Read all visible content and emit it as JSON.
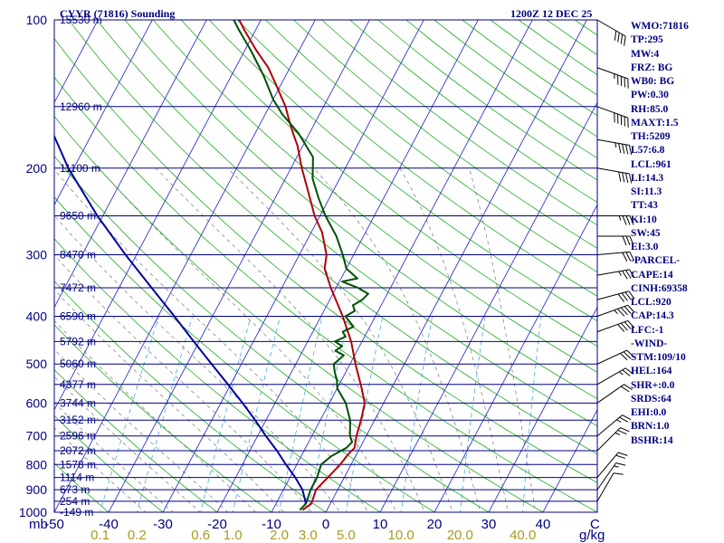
{
  "header": {
    "station": "CYYR (71816) Sounding",
    "time": "1200Z 12 DEC 25"
  },
  "chart_data": {
    "type": "line",
    "title": "CYYR (71816) Sounding",
    "pressure_axis": {
      "label": "mb",
      "ticks": [
        100,
        200,
        300,
        400,
        500,
        600,
        700,
        800,
        900,
        1000
      ],
      "range": [
        1000,
        100
      ],
      "scale": "log"
    },
    "temperature_axis": {
      "ticks": [
        -50,
        -40,
        -30,
        -20,
        -10,
        0,
        10,
        20,
        30,
        40
      ],
      "tick_labels": [
        "-50",
        "-40",
        "-30",
        "-20",
        "-10",
        "0",
        "10",
        "20",
        "30",
        "40"
      ],
      "unit": "C",
      "range": [
        -50,
        50
      ]
    },
    "mixing_ratio_axis": {
      "ticks": [
        0.1,
        0.2,
        0.6,
        1.0,
        2.0,
        3.0,
        5.0,
        10.0,
        20.0,
        40.0
      ],
      "tick_labels": [
        "0.1",
        "0.2",
        "0.6",
        "1.0",
        "2.0",
        "3.0",
        "5.0",
        "10.0",
        "20.0",
        "40.0"
      ],
      "unit": "g/kg"
    },
    "height_labels": [
      {
        "p": 100,
        "label": "15530 m"
      },
      {
        "p": 150,
        "label": "12960 m"
      },
      {
        "p": 200,
        "label": "11100 m"
      },
      {
        "p": 250,
        "label": "9650 m"
      },
      {
        "p": 300,
        "label": "8470 m"
      },
      {
        "p": 350,
        "label": "7472 m"
      },
      {
        "p": 400,
        "label": "6590 m"
      },
      {
        "p": 450,
        "label": "5792 m"
      },
      {
        "p": 500,
        "label": "5060 m"
      },
      {
        "p": 550,
        "label": "4377 m"
      },
      {
        "p": 600,
        "label": "3744 m"
      },
      {
        "p": 650,
        "label": "3152 m"
      },
      {
        "p": 700,
        "label": "2596 m"
      },
      {
        "p": 750,
        "label": "2072 m"
      },
      {
        "p": 800,
        "label": "1578 m"
      },
      {
        "p": 850,
        "label": "1114 m"
      },
      {
        "p": 900,
        "label": "673 m"
      },
      {
        "p": 950,
        "label": "254 m"
      },
      {
        "p": 1000,
        "label": "-149 m"
      }
    ],
    "series": [
      {
        "name": "Temperature",
        "color": "#b00000",
        "points": [
          [
            990,
            -4.5
          ],
          [
            960,
            -3.5
          ],
          [
            900,
            -4
          ],
          [
            850,
            -3
          ],
          [
            800,
            -2
          ],
          [
            760,
            -1.5
          ],
          [
            740,
            -1
          ],
          [
            700,
            -1.8
          ],
          [
            650,
            -2.5
          ],
          [
            600,
            -3.5
          ],
          [
            560,
            -5.5
          ],
          [
            500,
            -9
          ],
          [
            450,
            -12
          ],
          [
            400,
            -16
          ],
          [
            350,
            -21
          ],
          [
            320,
            -24
          ],
          [
            300,
            -25
          ],
          [
            270,
            -28
          ],
          [
            250,
            -31
          ],
          [
            220,
            -35
          ],
          [
            200,
            -38
          ],
          [
            180,
            -41
          ],
          [
            170,
            -43
          ],
          [
            160,
            -45
          ],
          [
            150,
            -47
          ],
          [
            135,
            -51
          ],
          [
            125,
            -54
          ],
          [
            115,
            -58
          ],
          [
            105,
            -62
          ],
          [
            100,
            -64
          ]
        ]
      },
      {
        "name": "Dewpoint",
        "color": "#005000",
        "points": [
          [
            990,
            -5
          ],
          [
            960,
            -4.5
          ],
          [
            900,
            -5
          ],
          [
            850,
            -5
          ],
          [
            800,
            -5.5
          ],
          [
            770,
            -4.5
          ],
          [
            740,
            -2.5
          ],
          [
            720,
            -2
          ],
          [
            700,
            -3
          ],
          [
            650,
            -4.5
          ],
          [
            600,
            -7
          ],
          [
            560,
            -10
          ],
          [
            540,
            -10.8
          ],
          [
            520,
            -12
          ],
          [
            500,
            -13
          ],
          [
            480,
            -12
          ],
          [
            470,
            -14
          ],
          [
            460,
            -13.2
          ],
          [
            450,
            -15
          ],
          [
            440,
            -13.5
          ],
          [
            430,
            -14.5
          ],
          [
            420,
            -13
          ],
          [
            400,
            -15.5
          ],
          [
            390,
            -14.3
          ],
          [
            380,
            -15.2
          ],
          [
            370,
            -14
          ],
          [
            360,
            -13.5
          ],
          [
            350,
            -16
          ],
          [
            340,
            -19.5
          ],
          [
            335,
            -17
          ],
          [
            320,
            -20
          ],
          [
            300,
            -22
          ],
          [
            275,
            -25
          ],
          [
            250,
            -29
          ],
          [
            230,
            -32
          ],
          [
            210,
            -35
          ],
          [
            190,
            -37
          ],
          [
            170,
            -42
          ],
          [
            155,
            -47
          ],
          [
            145,
            -50
          ],
          [
            130,
            -54
          ],
          [
            115,
            -59
          ],
          [
            105,
            -63
          ],
          [
            100,
            -65
          ]
        ]
      },
      {
        "name": "Parcel",
        "color": "#0000a0",
        "points": [
          [
            960,
            -4.5
          ],
          [
            900,
            -6.5
          ],
          [
            850,
            -9
          ],
          [
            800,
            -12
          ],
          [
            750,
            -15
          ],
          [
            700,
            -18.5
          ],
          [
            650,
            -22
          ],
          [
            600,
            -26
          ],
          [
            550,
            -30.5
          ],
          [
            500,
            -35.5
          ],
          [
            450,
            -41
          ],
          [
            400,
            -47
          ],
          [
            350,
            -54
          ],
          [
            300,
            -62
          ],
          [
            250,
            -71
          ],
          [
            200,
            -81
          ],
          [
            150,
            -92
          ],
          [
            100,
            -106
          ]
        ]
      }
    ],
    "legend": "none"
  },
  "indices": [
    "WMO:71816",
    "TP:295",
    "MW:4",
    "FRZ: BG",
    "WB0: BG",
    "PW:0.30",
    "RH:85.0",
    "MAXT:1.5",
    "TH:5209",
    "L57:6.8",
    "LCL:961",
    "LI:14.3",
    "SI:11.3",
    "TT:43",
    "KI:10",
    "SW:45",
    "EI:3.0",
    "-PARCEL-",
    "CAPE:14",
    "CINH:69358",
    "LCL:920",
    "CAP:14.3",
    "LFC:-1",
    "-WIND-",
    "STM:109/10",
    "HEL:164",
    "SHR+:0.0",
    "SRDS:64",
    "EHI:0.0",
    "BRN:1.0",
    "BSHR:14"
  ],
  "wind_barbs": [
    {
      "p": 100,
      "dir": 300,
      "spd": 40
    },
    {
      "p": 125,
      "dir": 290,
      "spd": 45
    },
    {
      "p": 150,
      "dir": 290,
      "spd": 50
    },
    {
      "p": 175,
      "dir": 280,
      "spd": 45
    },
    {
      "p": 200,
      "dir": 280,
      "spd": 40
    },
    {
      "p": 250,
      "dir": 270,
      "spd": 35
    },
    {
      "p": 275,
      "dir": 270,
      "spd": 30
    },
    {
      "p": 300,
      "dir": 265,
      "spd": 30
    },
    {
      "p": 330,
      "dir": 260,
      "spd": 35
    },
    {
      "p": 370,
      "dir": 255,
      "spd": 40
    },
    {
      "p": 400,
      "dir": 250,
      "spd": 45
    },
    {
      "p": 430,
      "dir": 250,
      "spd": 40
    },
    {
      "p": 500,
      "dir": 245,
      "spd": 30
    },
    {
      "p": 550,
      "dir": 240,
      "spd": 25
    },
    {
      "p": 600,
      "dir": 235,
      "spd": 20
    },
    {
      "p": 700,
      "dir": 230,
      "spd": 25
    },
    {
      "p": 750,
      "dir": 225,
      "spd": 25
    },
    {
      "p": 850,
      "dir": 220,
      "spd": 20
    },
    {
      "p": 900,
      "dir": 215,
      "spd": 15
    },
    {
      "p": 950,
      "dir": 210,
      "spd": 10
    }
  ],
  "colors": {
    "isobar": "#000080",
    "isotherm": "#3333cc",
    "dry_adiabat": "#22aa22",
    "moist_adiabat": "#777777",
    "mixing_ratio": "#44aadd",
    "temperature": "#b00000",
    "dewpoint": "#005000",
    "parcel": "#0000a0"
  }
}
